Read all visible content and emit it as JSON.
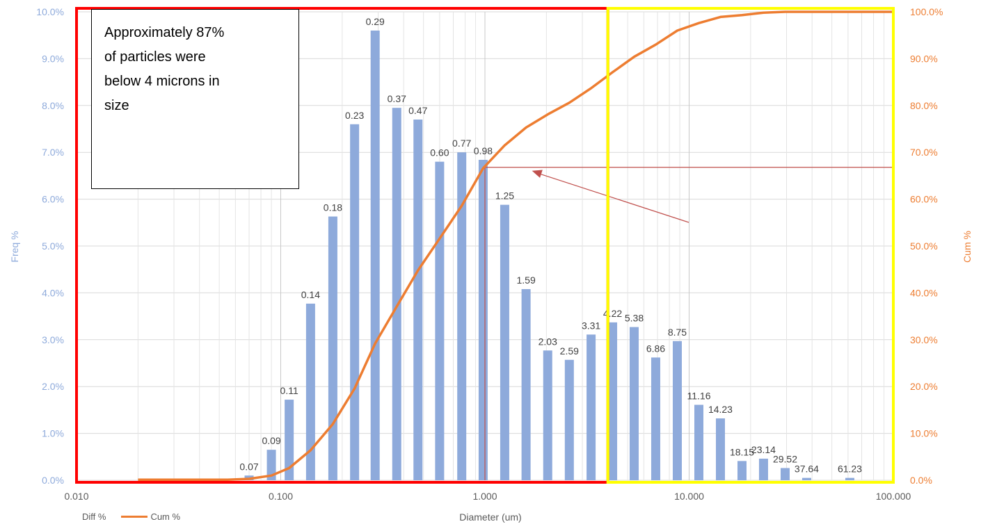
{
  "chart_data": {
    "type": "bar",
    "x_scale": "log",
    "xlim": [
      0.01,
      100
    ],
    "x_ticks": [
      "0.010",
      "0.100",
      "1.000",
      "10.000",
      "100.000"
    ],
    "xlabel": "Diameter (um)",
    "ylabel_left": "Freq %",
    "ylabel_right": "Cum %",
    "ylim_left": [
      0,
      10
    ],
    "ylim_right": [
      0,
      100
    ],
    "y_ticks_left": [
      "0.0%",
      "1.0%",
      "2.0%",
      "3.0%",
      "4.0%",
      "5.0%",
      "6.0%",
      "7.0%",
      "8.0%",
      "9.0%",
      "10.0%"
    ],
    "y_ticks_right": [
      "0.0%",
      "10.0%",
      "20.0%",
      "30.0%",
      "40.0%",
      "50.0%",
      "60.0%",
      "70.0%",
      "80.0%",
      "90.0%",
      "100.0%"
    ],
    "grid": true,
    "legend_position": "bottom-left",
    "series": [
      {
        "name": "Diff %",
        "type": "bar",
        "axis": "left",
        "color": "#8eaadb",
        "x": [
          0.07,
          0.09,
          0.11,
          0.14,
          0.18,
          0.23,
          0.29,
          0.37,
          0.47,
          0.6,
          0.77,
          0.98,
          1.25,
          1.59,
          2.03,
          2.59,
          3.31,
          4.22,
          5.38,
          6.86,
          8.75,
          11.16,
          14.23,
          18.15,
          23.14,
          29.52,
          37.64,
          61.23
        ],
        "labels": [
          "0.07",
          "0.09",
          "0.11",
          "0.14",
          "0.18",
          "0.23",
          "0.29",
          "0.37",
          "0.47",
          "0.60",
          "0.77",
          "0.98",
          "1.25",
          "1.59",
          "2.03",
          "2.59",
          "3.31",
          "4.22",
          "5.38",
          "6.86",
          "8.75",
          "11.16",
          "14.23",
          "18.15",
          "23.14",
          "29.52",
          "37.64",
          "61.23"
        ],
        "values": [
          0.1,
          0.65,
          1.72,
          3.77,
          5.63,
          7.6,
          9.6,
          7.95,
          7.7,
          6.8,
          7.0,
          6.84,
          5.88,
          4.08,
          2.77,
          2.57,
          3.11,
          3.37,
          3.27,
          2.62,
          2.97,
          1.61,
          1.32,
          0.41,
          0.46,
          0.26,
          0.05,
          0.05
        ]
      },
      {
        "name": "Cum %",
        "type": "line",
        "axis": "right",
        "color": "#ed7d31",
        "x": [
          0.02,
          0.055,
          0.07,
          0.09,
          0.11,
          0.14,
          0.18,
          0.23,
          0.29,
          0.37,
          0.47,
          0.6,
          0.77,
          0.98,
          1.25,
          1.59,
          2.03,
          2.59,
          3.31,
          4.22,
          5.38,
          6.86,
          8.75,
          11.16,
          14.23,
          18.15,
          23.14,
          29.52,
          37.64,
          100
        ],
        "values": [
          0.1,
          0.1,
          0.3,
          1.0,
          2.6,
          6.4,
          12.0,
          19.6,
          29.2,
          37.1,
          44.8,
          51.6,
          58.6,
          66.6,
          71.5,
          75.3,
          78.1,
          80.6,
          83.7,
          87.1,
          90.4,
          93.0,
          96.0,
          97.6,
          98.9,
          99.3,
          99.8,
          100,
          100,
          100
        ]
      }
    ],
    "reference_lines": {
      "marker_x": 1.0,
      "level_y_right": 66.8
    },
    "highlight_boxes": [
      {
        "x_range": [
          0.01,
          4.0
        ],
        "color": "#ff0000"
      },
      {
        "x_range": [
          4.0,
          100
        ],
        "color": "#ffff00"
      }
    ],
    "annotation": {
      "lines": [
        "Approximately 87%",
        "of particles were",
        "below 4 microns in",
        "size"
      ]
    }
  },
  "legend": {
    "diff_label": "Diff %",
    "cum_label": "Cum %"
  }
}
